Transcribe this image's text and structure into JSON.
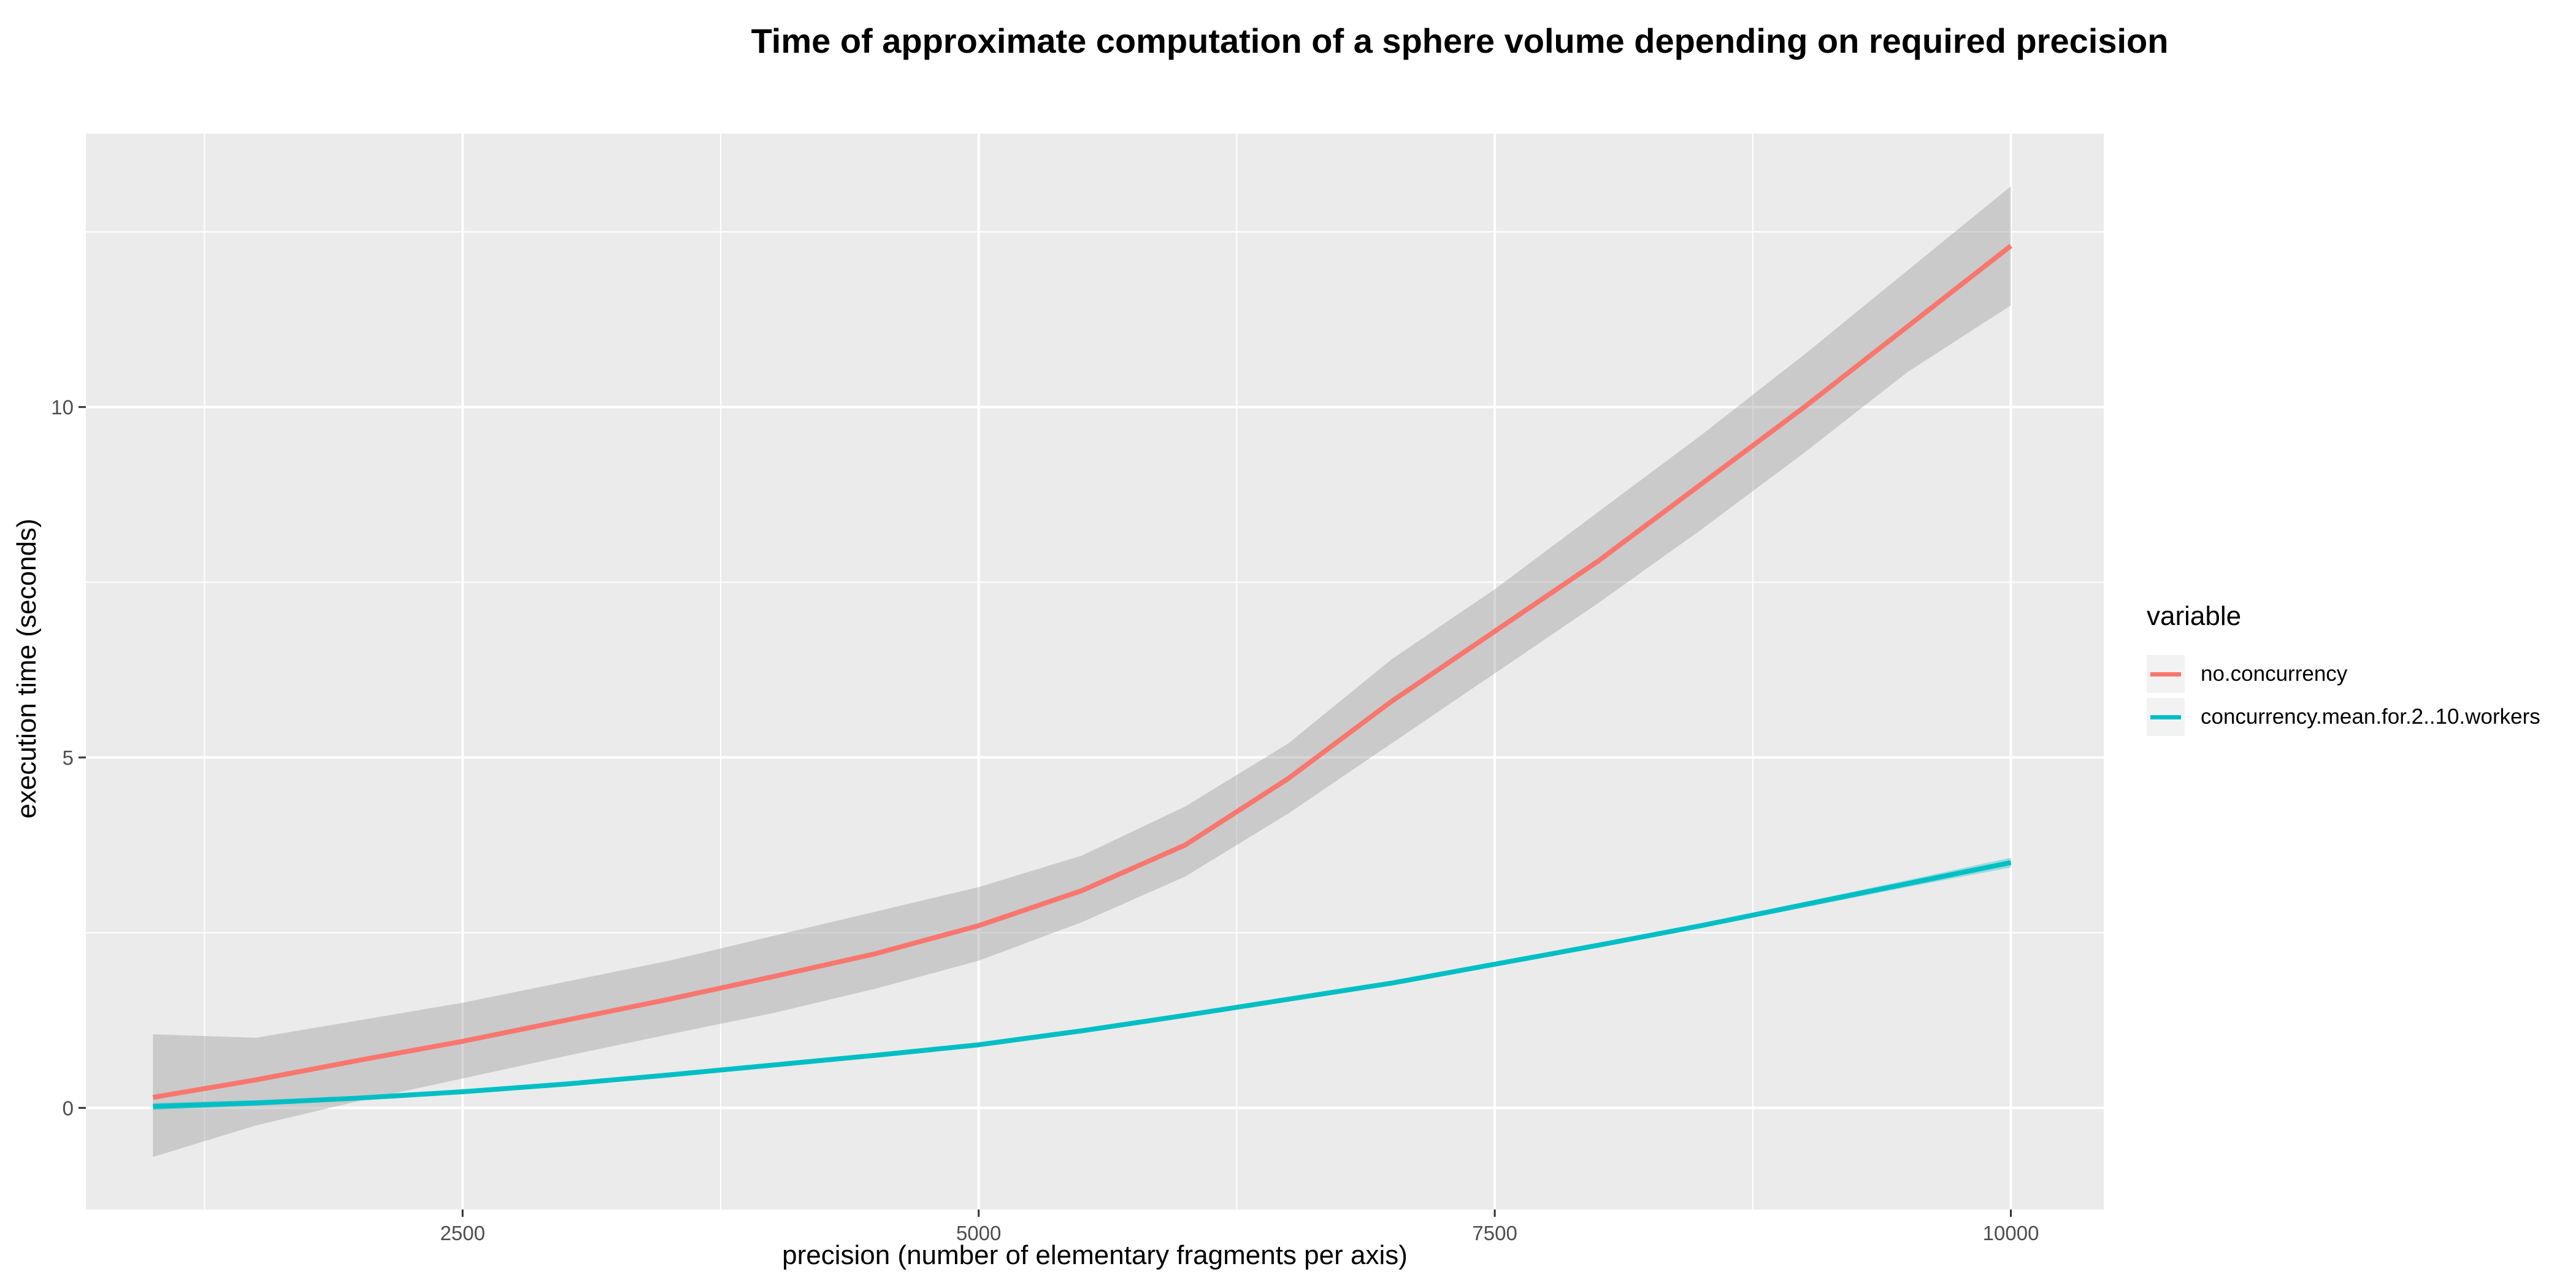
{
  "chart_data": {
    "type": "line",
    "title": "Time of approximate computation of a sphere volume depending on required precision",
    "xlabel": "precision (number of elementary fragments per axis)",
    "ylabel": "execution time (seconds)",
    "xlim": [
      675,
      10450
    ],
    "ylim": [
      -1.45,
      13.9
    ],
    "x_ticks": [
      2500,
      5000,
      7500,
      10000
    ],
    "y_ticks": [
      0,
      5,
      10
    ],
    "grid": true,
    "legend_position": "right",
    "legend_title": "variable",
    "series": [
      {
        "name": "no.concurrency",
        "color": "#F8766D",
        "x": [
          1000,
          1500,
          2000,
          2500,
          3000,
          3500,
          4000,
          4500,
          5000,
          5500,
          6000,
          6500,
          7000,
          7500,
          8000,
          8500,
          9000,
          9500,
          10000
        ],
        "y": [
          0.15,
          0.4,
          0.68,
          0.95,
          1.25,
          1.55,
          1.87,
          2.2,
          2.6,
          3.1,
          3.75,
          4.7,
          5.8,
          6.8,
          7.8,
          8.9,
          10.0,
          11.15,
          12.3
        ],
        "lower": [
          -0.7,
          -0.25,
          0.1,
          0.42,
          0.74,
          1.05,
          1.35,
          1.7,
          2.1,
          2.65,
          3.3,
          4.2,
          5.2,
          6.2,
          7.2,
          8.25,
          9.35,
          10.5,
          11.45
        ],
        "upper": [
          1.05,
          1.0,
          1.25,
          1.5,
          1.8,
          2.1,
          2.45,
          2.8,
          3.15,
          3.6,
          4.3,
          5.2,
          6.4,
          7.4,
          8.5,
          9.6,
          10.75,
          11.95,
          13.15
        ]
      },
      {
        "name": "concurrency.mean.for.2..10.workers",
        "color": "#00BFC4",
        "x": [
          1000,
          1500,
          2000,
          2500,
          3000,
          3500,
          4000,
          4500,
          5000,
          5500,
          6000,
          6500,
          7000,
          7500,
          8000,
          8500,
          9000,
          9500,
          10000
        ],
        "y": [
          0.02,
          0.07,
          0.14,
          0.23,
          0.34,
          0.47,
          0.61,
          0.75,
          0.9,
          1.1,
          1.32,
          1.55,
          1.78,
          2.05,
          2.32,
          2.6,
          2.9,
          3.2,
          3.5
        ],
        "lower": [
          -0.03,
          0.03,
          0.11,
          0.2,
          0.31,
          0.44,
          0.58,
          0.72,
          0.87,
          1.07,
          1.29,
          1.52,
          1.75,
          2.02,
          2.29,
          2.57,
          2.86,
          3.15,
          3.43
        ],
        "upper": [
          0.07,
          0.11,
          0.17,
          0.26,
          0.37,
          0.5,
          0.64,
          0.78,
          0.93,
          1.13,
          1.35,
          1.58,
          1.81,
          2.08,
          2.35,
          2.63,
          2.94,
          3.25,
          3.57
        ]
      }
    ]
  }
}
